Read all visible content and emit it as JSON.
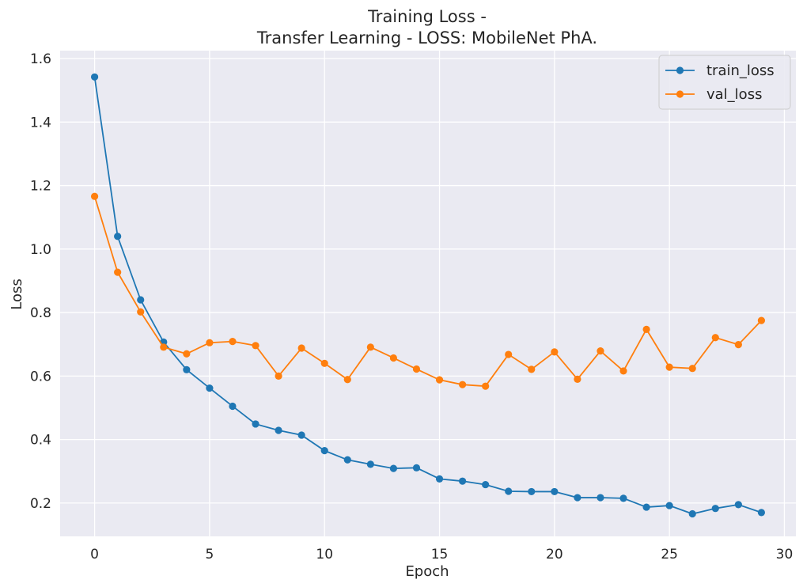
{
  "chart_data": {
    "type": "line",
    "title_line1": "Training Loss -",
    "title_line2": "Transfer Learning - LOSS: MobileNet PhA.",
    "xlabel": "Epoch",
    "ylabel": "Loss",
    "xlim": [
      -1.5,
      30.5
    ],
    "ylim": [
      0.095,
      1.625
    ],
    "xticks": [
      0,
      5,
      10,
      15,
      20,
      25,
      30
    ],
    "yticks": [
      0.2,
      0.4,
      0.6,
      0.8,
      1.0,
      1.2,
      1.4,
      1.6
    ],
    "grid": true,
    "legend_position": "top-right",
    "x": [
      0,
      1,
      2,
      3,
      4,
      5,
      6,
      7,
      8,
      9,
      10,
      11,
      12,
      13,
      14,
      15,
      16,
      17,
      18,
      19,
      20,
      21,
      22,
      23,
      24,
      25,
      26,
      27,
      28,
      29
    ],
    "series": [
      {
        "name": "train_loss",
        "color": "#1f77b4",
        "values": [
          1.542,
          1.04,
          0.84,
          0.707,
          0.62,
          0.562,
          0.505,
          0.449,
          0.429,
          0.414,
          0.365,
          0.336,
          0.322,
          0.309,
          0.311,
          0.276,
          0.269,
          0.258,
          0.237,
          0.236,
          0.236,
          0.217,
          0.217,
          0.215,
          0.187,
          0.192,
          0.166,
          0.183,
          0.195,
          0.17
        ]
      },
      {
        "name": "val_loss",
        "color": "#ff7f0e",
        "values": [
          1.166,
          0.927,
          0.802,
          0.691,
          0.67,
          0.705,
          0.709,
          0.696,
          0.6,
          0.688,
          0.64,
          0.589,
          0.691,
          0.657,
          0.622,
          0.588,
          0.573,
          0.568,
          0.668,
          0.621,
          0.676,
          0.59,
          0.679,
          0.616,
          0.747,
          0.628,
          0.624,
          0.721,
          0.699,
          0.775
        ]
      }
    ]
  }
}
